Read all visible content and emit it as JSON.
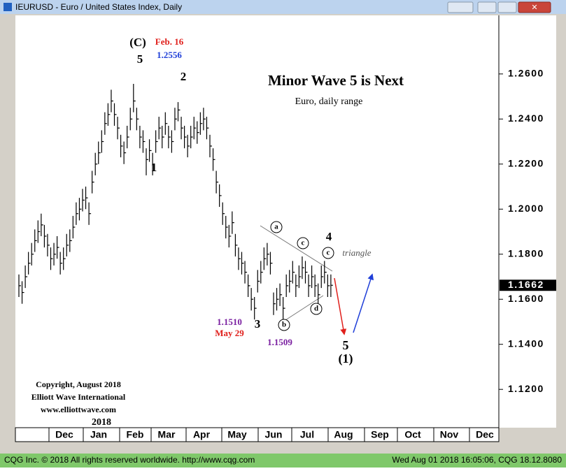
{
  "window_title": "IEURUSD - Euro / United States Index, Daily",
  "chart_data": {
    "type": "ohlc",
    "title": "Minor Wave 5 is Next",
    "subtitle": "Euro, daily range",
    "series": [
      {
        "name": "EURUSD",
        "color": "#000000",
        "high": [
          1.171,
          1.168,
          1.175,
          1.181,
          1.185,
          1.191,
          1.195,
          1.198,
          1.193,
          1.189,
          1.183,
          1.185,
          1.188,
          1.181,
          1.183,
          1.189,
          1.191,
          1.197,
          1.203,
          1.205,
          1.209,
          1.21,
          1.203,
          1.217,
          1.225,
          1.23,
          1.235,
          1.243,
          1.247,
          1.253,
          1.247,
          1.241,
          1.233,
          1.23,
          1.237,
          1.245,
          1.2556,
          1.245,
          1.237,
          1.235,
          1.227,
          1.231,
          1.225,
          1.235,
          1.241,
          1.237,
          1.243,
          1.237,
          1.235,
          1.245,
          1.2475,
          1.241,
          1.237,
          1.233,
          1.237,
          1.241,
          1.239,
          1.243,
          1.245,
          1.241,
          1.233,
          1.227,
          1.217,
          1.211,
          1.203,
          1.197,
          1.193,
          1.199,
          1.189,
          1.183,
          1.181,
          1.177,
          1.171,
          1.165,
          1.161,
          1.173,
          1.177,
          1.183,
          1.185,
          1.181,
          1.163,
          1.165,
          1.167,
          1.161,
          1.171,
          1.173,
          1.177,
          1.171,
          1.175,
          1.179,
          1.177,
          1.171,
          1.175,
          1.171,
          1.167,
          1.175,
          1.177,
          1.171,
          1.171
        ],
        "low": [
          1.161,
          1.158,
          1.165,
          1.171,
          1.175,
          1.181,
          1.185,
          1.188,
          1.183,
          1.179,
          1.173,
          1.175,
          1.178,
          1.171,
          1.173,
          1.179,
          1.181,
          1.187,
          1.193,
          1.195,
          1.199,
          1.2,
          1.193,
          1.207,
          1.215,
          1.22,
          1.225,
          1.233,
          1.237,
          1.243,
          1.237,
          1.231,
          1.223,
          1.22,
          1.227,
          1.235,
          1.243,
          1.235,
          1.227,
          1.225,
          1.215,
          1.221,
          1.215,
          1.225,
          1.231,
          1.227,
          1.233,
          1.227,
          1.225,
          1.235,
          1.239,
          1.231,
          1.227,
          1.223,
          1.227,
          1.231,
          1.229,
          1.233,
          1.235,
          1.231,
          1.223,
          1.217,
          1.207,
          1.201,
          1.193,
          1.187,
          1.183,
          1.189,
          1.179,
          1.173,
          1.171,
          1.167,
          1.161,
          1.155,
          1.151,
          1.163,
          1.167,
          1.173,
          1.175,
          1.171,
          1.153,
          1.155,
          1.157,
          1.1509,
          1.161,
          1.163,
          1.167,
          1.161,
          1.165,
          1.169,
          1.167,
          1.161,
          1.165,
          1.161,
          1.1575,
          1.165,
          1.167,
          1.161,
          1.161
        ],
        "close": [
          1.166,
          1.163,
          1.17,
          1.176,
          1.18,
          1.186,
          1.19,
          1.193,
          1.188,
          1.184,
          1.178,
          1.18,
          1.183,
          1.176,
          1.178,
          1.184,
          1.186,
          1.192,
          1.198,
          1.2,
          1.204,
          1.205,
          1.198,
          1.212,
          1.22,
          1.225,
          1.23,
          1.238,
          1.242,
          1.248,
          1.242,
          1.236,
          1.228,
          1.225,
          1.232,
          1.24,
          1.248,
          1.24,
          1.232,
          1.23,
          1.222,
          1.226,
          1.22,
          1.23,
          1.236,
          1.232,
          1.238,
          1.232,
          1.23,
          1.24,
          1.244,
          1.236,
          1.232,
          1.228,
          1.232,
          1.236,
          1.234,
          1.238,
          1.24,
          1.236,
          1.228,
          1.222,
          1.212,
          1.206,
          1.198,
          1.192,
          1.188,
          1.194,
          1.184,
          1.178,
          1.176,
          1.172,
          1.166,
          1.16,
          1.156,
          1.168,
          1.172,
          1.178,
          1.18,
          1.176,
          1.158,
          1.16,
          1.162,
          1.156,
          1.166,
          1.168,
          1.172,
          1.166,
          1.17,
          1.174,
          1.172,
          1.166,
          1.17,
          1.166,
          1.162,
          1.17,
          1.172,
          1.166,
          1.1662
        ]
      }
    ],
    "ylim": [
      1.103,
      1.286
    ],
    "yticks": [
      {
        "value": 1.12,
        "label": "1.1200"
      },
      {
        "value": 1.14,
        "label": "1.1400"
      },
      {
        "value": 1.16,
        "label": "1.1600"
      },
      {
        "value": 1.18,
        "label": "1.1800"
      },
      {
        "value": 1.2,
        "label": "1.2000"
      },
      {
        "value": 1.22,
        "label": "1.2200"
      },
      {
        "value": 1.24,
        "label": "1.2400"
      },
      {
        "value": 1.26,
        "label": "1.2600"
      }
    ],
    "last_price": {
      "value": 1.1662,
      "label": "1.1662"
    },
    "months": [
      "Dec",
      "Jan",
      "Feb",
      "Mar",
      "Apr",
      "May",
      "Jun",
      "Jul",
      "Aug",
      "Sep",
      "Oct",
      "Nov",
      "Dec"
    ],
    "year": "2018",
    "annotations": [
      "(C)",
      "5",
      "Feb. 16",
      "1.2556",
      "2",
      "1",
      "3",
      "1.1510",
      "May 29",
      "1.1509",
      "a",
      "b",
      "c",
      "d",
      "4",
      "c",
      "triangle",
      "5",
      "(1)"
    ],
    "copyright": [
      "Copyright, August 2018",
      "Elliott Wave International",
      "www.elliottwave.com"
    ]
  },
  "footer": {
    "left": "CQG Inc. © 2018 All rights reserved worldwide. http://www.cqg.com",
    "right": "Wed Aug 01 2018 16:05:06, CQG 18.12.8080"
  }
}
